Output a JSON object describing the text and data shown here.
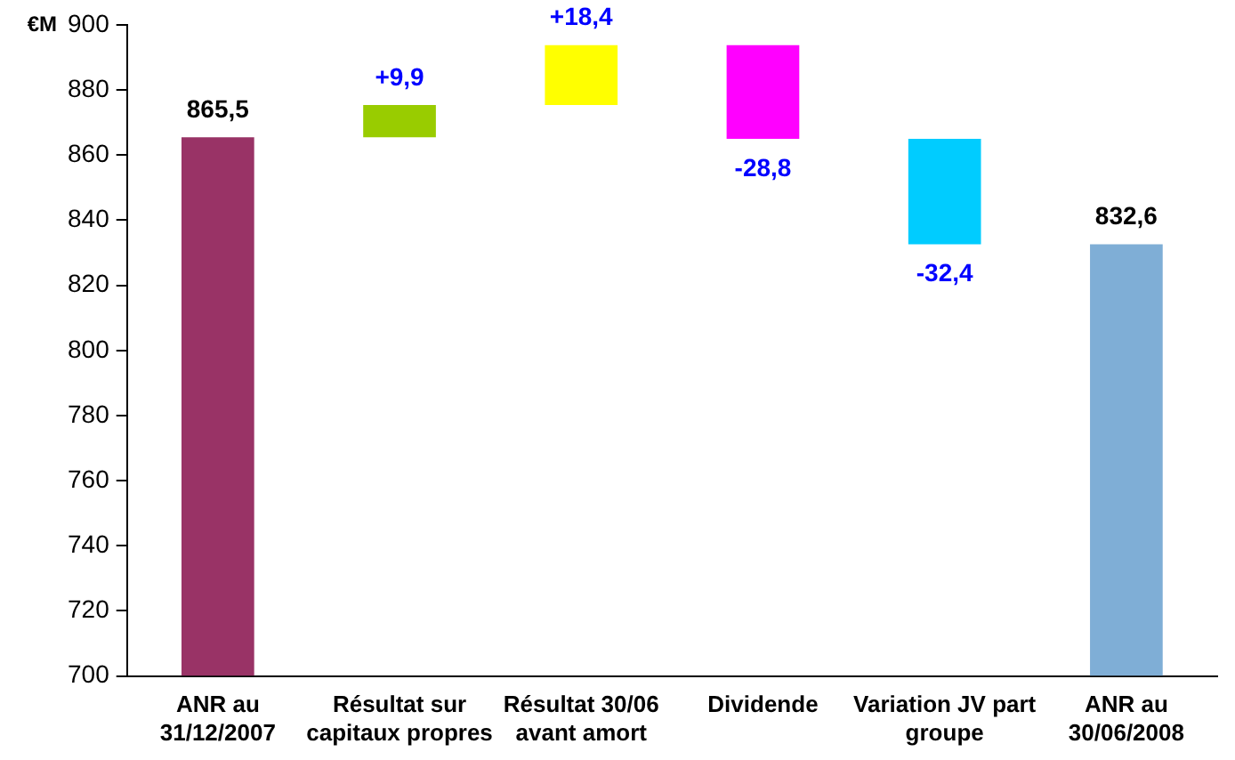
{
  "chart_data": {
    "type": "bar",
    "ylabel": "€M",
    "categories": [
      "ANR au 31/12/2007",
      "Résultat sur capitaux propres",
      "Résultat 30/06 avant amort",
      "Dividende",
      "Variation JV part groupe",
      "ANR au 30/06/2008"
    ],
    "base": [
      700,
      865.5,
      875.4,
      893.8,
      865,
      700
    ],
    "values": [
      165.5,
      9.9,
      18.4,
      -28.8,
      -32.4,
      132.6
    ],
    "colors": [
      "#993366",
      "#99cc00",
      "#ffff00",
      "#ff00ff",
      "#00ccff",
      "#7faed6"
    ],
    "value_labels": [
      "865,5",
      "+9,9",
      "+18,4",
      "-28,8",
      "-32,4",
      "832,6"
    ],
    "ylim": [
      700,
      900
    ],
    "yticks": [
      700,
      720,
      740,
      760,
      780,
      800,
      820,
      840,
      860,
      880,
      900
    ],
    "grid": false,
    "legend": false
  }
}
